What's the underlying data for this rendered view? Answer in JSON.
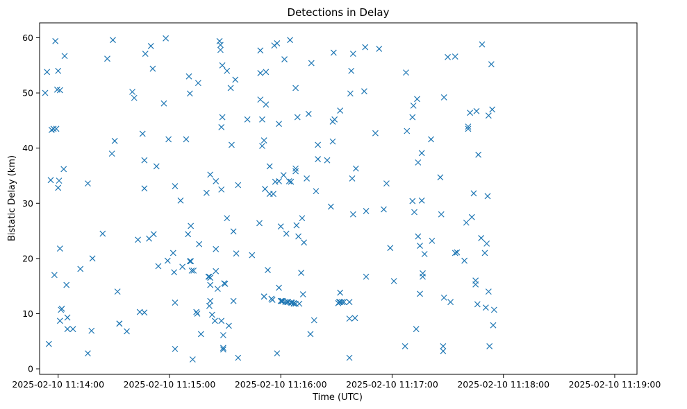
{
  "chart_data": {
    "type": "scatter",
    "title": "Detections in Delay",
    "xlabel": "Time (UTC)",
    "ylabel": "Bistatic Delay (km)",
    "marker": "x",
    "color": "#1f77b4",
    "x_unit": "seconds after 2025-02-10 11:13:40",
    "xlim": [
      0,
      322
    ],
    "ylim": [
      -1,
      62.7
    ],
    "x_ticks": [
      {
        "value": 10,
        "label": "2025-02-10 11:14:00"
      },
      {
        "value": 70,
        "label": "2025-02-10 11:15:00"
      },
      {
        "value": 130,
        "label": "2025-02-10 11:16:00"
      },
      {
        "value": 190,
        "label": "2025-02-10 11:17:00"
      },
      {
        "value": 250,
        "label": "2025-02-10 11:18:00"
      },
      {
        "value": 310,
        "label": "2025-02-10 11:19:00"
      }
    ],
    "y_ticks": [
      {
        "value": 0,
        "label": "0"
      },
      {
        "value": 10,
        "label": "10"
      },
      {
        "value": 20,
        "label": "20"
      },
      {
        "value": 30,
        "label": "30"
      },
      {
        "value": 40,
        "label": "40"
      },
      {
        "value": 50,
        "label": "50"
      },
      {
        "value": 60,
        "label": "60"
      }
    ],
    "points": [
      [
        3,
        50
      ],
      [
        4,
        53.8
      ],
      [
        5,
        4.5
      ],
      [
        6,
        34.2
      ],
      [
        6.5,
        43.3
      ],
      [
        7.5,
        43.5
      ],
      [
        8,
        17
      ],
      [
        8.5,
        59.4
      ],
      [
        9,
        43.5
      ],
      [
        9.5,
        50.6
      ],
      [
        10,
        32.8
      ],
      [
        10,
        54
      ],
      [
        10.5,
        34.1
      ],
      [
        11,
        50.5
      ],
      [
        11,
        21.8
      ],
      [
        11,
        8.7
      ],
      [
        11.5,
        10.7
      ],
      [
        12,
        10.9
      ],
      [
        13,
        36.2
      ],
      [
        13.5,
        56.7
      ],
      [
        14.5,
        15.2
      ],
      [
        15,
        9.3
      ],
      [
        15,
        7.2
      ],
      [
        18,
        7.2
      ],
      [
        22,
        18.1
      ],
      [
        26,
        33.6
      ],
      [
        26,
        2.8
      ],
      [
        28,
        6.9
      ],
      [
        28.5,
        20
      ],
      [
        34,
        24.5
      ],
      [
        36.5,
        56.2
      ],
      [
        39,
        39
      ],
      [
        39.5,
        59.6
      ],
      [
        40.5,
        41.3
      ],
      [
        42,
        14
      ],
      [
        43,
        8.2
      ],
      [
        43,
        8.2
      ],
      [
        47,
        6.8
      ],
      [
        50,
        50.2
      ],
      [
        51,
        49.1
      ],
      [
        53,
        23.4
      ],
      [
        54,
        10.3
      ],
      [
        55.5,
        42.6
      ],
      [
        56.5,
        10.2
      ],
      [
        56.5,
        37.8
      ],
      [
        56.5,
        32.7
      ],
      [
        57,
        57.1
      ],
      [
        59,
        23.6
      ],
      [
        60,
        58.5
      ],
      [
        61,
        54.4
      ],
      [
        61.5,
        24.4
      ],
      [
        63,
        36.7
      ],
      [
        64,
        18.6
      ],
      [
        67,
        48.1
      ],
      [
        68,
        59.9
      ],
      [
        69,
        19.6
      ],
      [
        69.5,
        41.6
      ],
      [
        72,
        21
      ],
      [
        72.5,
        17.5
      ],
      [
        73,
        3.6
      ],
      [
        73,
        12
      ],
      [
        73,
        33.1
      ],
      [
        76,
        30.5
      ],
      [
        77,
        18.5
      ],
      [
        79,
        41.6
      ],
      [
        80,
        24.4
      ],
      [
        80.5,
        53
      ],
      [
        81,
        49.9
      ],
      [
        81,
        19.5
      ],
      [
        81.5,
        25.9
      ],
      [
        81.5,
        19.5
      ],
      [
        82,
        17.8
      ],
      [
        82.5,
        1.7
      ],
      [
        83,
        17.8
      ],
      [
        84.5,
        10.3
      ],
      [
        85,
        10
      ],
      [
        85.5,
        51.8
      ],
      [
        86,
        22.6
      ],
      [
        87,
        6.3
      ],
      [
        90,
        31.9
      ],
      [
        91,
        16.7
      ],
      [
        91.5,
        11.4
      ],
      [
        91.5,
        16.7
      ],
      [
        92,
        16.5
      ],
      [
        92,
        15.2
      ],
      [
        92,
        12.3
      ],
      [
        92,
        35.2
      ],
      [
        93,
        9.8
      ],
      [
        94.5,
        8.7
      ],
      [
        95,
        34
      ],
      [
        95,
        21.7
      ],
      [
        95,
        17.7
      ],
      [
        96,
        14.5
      ],
      [
        97,
        59.4
      ],
      [
        97.5,
        58.7
      ],
      [
        97.5,
        57.8
      ],
      [
        98,
        8.7
      ],
      [
        98,
        43.8
      ],
      [
        98,
        32.5
      ],
      [
        98.5,
        45.6
      ],
      [
        98.5,
        55
      ],
      [
        99,
        3.8
      ],
      [
        99,
        6.1
      ],
      [
        99,
        3.5
      ],
      [
        99.5,
        15.5
      ],
      [
        100,
        15.4
      ],
      [
        101,
        54
      ],
      [
        101,
        27.3
      ],
      [
        102,
        7.8
      ],
      [
        103,
        50.9
      ],
      [
        103.5,
        40.6
      ],
      [
        104.5,
        24.9
      ],
      [
        104.5,
        12.3
      ],
      [
        105.5,
        52.4
      ],
      [
        106,
        20.9
      ],
      [
        107,
        2
      ],
      [
        107,
        33.3
      ],
      [
        112,
        45.2
      ],
      [
        114.5,
        20.6
      ],
      [
        118.5,
        26.4
      ],
      [
        119,
        57.7
      ],
      [
        119,
        48.8
      ],
      [
        119,
        53.6
      ],
      [
        120,
        40.4
      ],
      [
        120,
        45.2
      ],
      [
        121,
        41.4
      ],
      [
        121,
        13.1
      ],
      [
        121,
        13.1
      ],
      [
        121.5,
        32.6
      ],
      [
        122,
        47.9
      ],
      [
        122,
        53.8
      ],
      [
        123,
        17.9
      ],
      [
        124,
        36.7
      ],
      [
        124,
        31.7
      ],
      [
        125,
        12.7
      ],
      [
        125.5,
        12.5
      ],
      [
        126,
        31.7
      ],
      [
        126.5,
        58.6
      ],
      [
        127,
        33.9
      ],
      [
        128,
        59
      ],
      [
        128,
        2.8
      ],
      [
        129,
        34
      ],
      [
        129,
        14.7
      ],
      [
        129,
        44.4
      ],
      [
        130,
        25.8
      ],
      [
        130,
        12.3
      ],
      [
        130.5,
        12.3
      ],
      [
        131,
        12.3
      ],
      [
        131.5,
        35.1
      ],
      [
        132,
        56.1
      ],
      [
        132.5,
        12.1
      ],
      [
        133,
        24.5
      ],
      [
        133.5,
        12.1
      ],
      [
        134,
        12.1
      ],
      [
        134.5,
        34
      ],
      [
        135,
        59.6
      ],
      [
        135.5,
        12
      ],
      [
        135.5,
        33.9
      ],
      [
        136,
        12
      ],
      [
        137,
        11.8
      ],
      [
        137,
        11.9
      ],
      [
        138,
        11.8
      ],
      [
        138,
        36.3
      ],
      [
        138,
        35.8
      ],
      [
        138,
        50.9
      ],
      [
        138.5,
        26
      ],
      [
        139,
        45.6
      ],
      [
        139.5,
        24
      ],
      [
        140,
        11.8
      ],
      [
        141,
        17.4
      ],
      [
        141.5,
        27.3
      ],
      [
        142,
        13.5
      ],
      [
        142.5,
        22.9
      ],
      [
        144,
        34.5
      ],
      [
        145,
        46.2
      ],
      [
        146,
        6.3
      ],
      [
        146.5,
        55.4
      ],
      [
        148,
        8.8
      ],
      [
        149,
        32.2
      ],
      [
        150,
        38
      ],
      [
        150,
        40.6
      ],
      [
        155,
        37.8
      ],
      [
        157,
        29.4
      ],
      [
        158,
        41.2
      ],
      [
        158,
        44.8
      ],
      [
        158.5,
        57.3
      ],
      [
        159,
        45.2
      ],
      [
        161,
        11.9
      ],
      [
        161.5,
        12.1
      ],
      [
        162,
        12.1
      ],
      [
        162,
        13.8
      ],
      [
        162,
        46.8
      ],
      [
        163,
        12.1
      ],
      [
        164,
        12.1
      ],
      [
        167,
        2
      ],
      [
        167,
        9.1
      ],
      [
        167,
        12.1
      ],
      [
        167.5,
        49.9
      ],
      [
        168,
        54
      ],
      [
        168.5,
        34.5
      ],
      [
        169,
        57.1
      ],
      [
        169,
        28
      ],
      [
        170,
        9.2
      ],
      [
        170.5,
        36.3
      ],
      [
        175,
        50.3
      ],
      [
        175.5,
        58.3
      ],
      [
        176,
        28.6
      ],
      [
        176,
        16.7
      ],
      [
        181,
        42.7
      ],
      [
        183,
        58
      ],
      [
        185.5,
        28.9
      ],
      [
        187,
        33.6
      ],
      [
        189,
        21.9
      ],
      [
        191,
        15.9
      ],
      [
        197,
        4.1
      ],
      [
        197.5,
        53.7
      ],
      [
        198,
        43.1
      ],
      [
        201,
        30.4
      ],
      [
        201,
        45.6
      ],
      [
        201.5,
        47.7
      ],
      [
        202,
        28.4
      ],
      [
        203,
        7.2
      ],
      [
        203.5,
        48.9
      ],
      [
        204,
        24
      ],
      [
        204,
        37.4
      ],
      [
        205,
        13.6
      ],
      [
        205,
        22.3
      ],
      [
        206,
        39.1
      ],
      [
        206,
        30.5
      ],
      [
        206.5,
        17.3
      ],
      [
        206.5,
        16.7
      ],
      [
        207.5,
        20.8
      ],
      [
        211,
        41.6
      ],
      [
        211.5,
        23.2
      ],
      [
        216,
        34.7
      ],
      [
        216.5,
        28
      ],
      [
        217.5,
        3.2
      ],
      [
        217.5,
        4.1
      ],
      [
        218,
        12.9
      ],
      [
        218,
        49.2
      ],
      [
        220,
        56.5
      ],
      [
        221.5,
        12.1
      ],
      [
        224,
        56.6
      ],
      [
        224,
        21
      ],
      [
        225,
        21.1
      ],
      [
        229,
        19.6
      ],
      [
        230,
        26.5
      ],
      [
        231,
        43.9
      ],
      [
        231,
        43.5
      ],
      [
        232,
        46.4
      ],
      [
        233,
        27.5
      ],
      [
        234,
        31.8
      ],
      [
        235,
        15.3
      ],
      [
        235,
        16
      ],
      [
        235.5,
        46.7
      ],
      [
        236,
        11.7
      ],
      [
        236.5,
        38.8
      ],
      [
        238,
        23.7
      ],
      [
        238.5,
        58.8
      ],
      [
        240,
        21
      ],
      [
        240.5,
        11.1
      ],
      [
        241,
        22.7
      ],
      [
        241.5,
        31.3
      ],
      [
        242,
        45.9
      ],
      [
        242,
        14
      ],
      [
        242.5,
        4.1
      ],
      [
        243.5,
        55.2
      ],
      [
        244,
        47
      ],
      [
        244.5,
        7.9
      ],
      [
        245,
        10.7
      ]
    ]
  }
}
